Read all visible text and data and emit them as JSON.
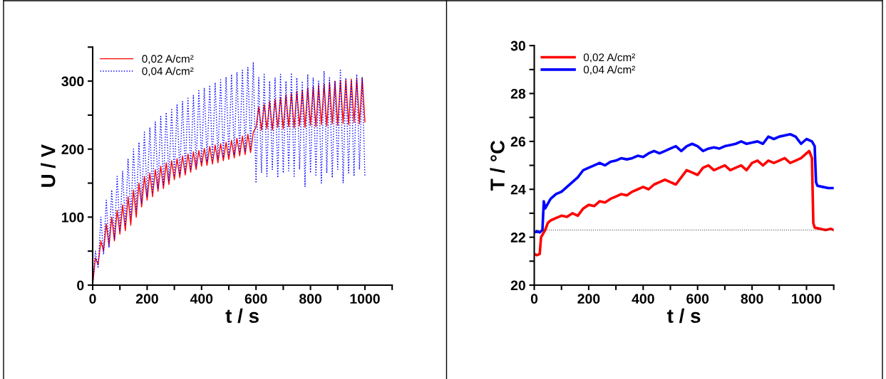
{
  "chart_data": [
    {
      "type": "line",
      "xlabel": "t / s",
      "ylabel": "U / V",
      "xlim": [
        0,
        1100
      ],
      "ylim": [
        0,
        350
      ],
      "xticks": [
        0,
        {
          "value": 100,
          "label": null
        },
        200,
        {
          "value": 300,
          "label": null
        },
        400,
        {
          "value": 500,
          "label": null
        },
        600,
        {
          "value": 700,
          "label": null
        },
        800,
        {
          "value": 900,
          "label": null
        },
        1000,
        {
          "value": 1100,
          "label": null
        }
      ],
      "yticks": [
        0,
        {
          "value": 50,
          "label": null
        },
        100,
        {
          "value": 150,
          "label": null
        },
        200,
        {
          "value": 250,
          "label": null
        },
        300,
        {
          "value": 350,
          "label": null
        }
      ],
      "grid": false,
      "legend": "top left",
      "marker": "none",
      "series": [
        {
          "name": "0,02 A/cm²",
          "color": "#ff0000",
          "line_style": "solid",
          "x": [
            0,
            10,
            20,
            30,
            40,
            50,
            60,
            70,
            80,
            90,
            100,
            110,
            120,
            130,
            140,
            150,
            160,
            170,
            180,
            190,
            200,
            210,
            220,
            230,
            240,
            250,
            260,
            270,
            280,
            290,
            300,
            310,
            320,
            330,
            340,
            350,
            360,
            370,
            380,
            390,
            400,
            410,
            420,
            430,
            440,
            450,
            460,
            470,
            480,
            490,
            500,
            510,
            520,
            530,
            540,
            550,
            560,
            570,
            580,
            590,
            600,
            610,
            620,
            630,
            640,
            650,
            660,
            670,
            680,
            690,
            700,
            710,
            720,
            730,
            740,
            750,
            760,
            770,
            780,
            790,
            800,
            810,
            820,
            830,
            840,
            850,
            860,
            870,
            880,
            890,
            900,
            910,
            920,
            930,
            940,
            950,
            960,
            970,
            980,
            990,
            1000
          ],
          "values": [
            0,
            40,
            30,
            65,
            50,
            90,
            58,
            100,
            65,
            110,
            75,
            118,
            80,
            130,
            88,
            140,
            100,
            150,
            115,
            160,
            125,
            165,
            130,
            170,
            138,
            175,
            142,
            180,
            148,
            183,
            155,
            186,
            158,
            190,
            162,
            193,
            166,
            196,
            170,
            198,
            175,
            201,
            176,
            204,
            178,
            206,
            180,
            208,
            183,
            210,
            185,
            213,
            187,
            216,
            190,
            219,
            192,
            222,
            195,
            225,
            232,
            262,
            228,
            266,
            230,
            270,
            228,
            273,
            232,
            276,
            230,
            280,
            233,
            282,
            231,
            285,
            234,
            287,
            232,
            290,
            235,
            292,
            233,
            294,
            236,
            296,
            234,
            298,
            237,
            300,
            235,
            301,
            238,
            302,
            236,
            303,
            239,
            304,
            237,
            305,
            240
          ]
        },
        {
          "name": "0,04 A/cm²",
          "color": "#0000ff",
          "line_style": "dotted",
          "x": [
            0,
            10,
            20,
            30,
            40,
            50,
            60,
            70,
            80,
            90,
            100,
            110,
            120,
            130,
            140,
            150,
            160,
            170,
            180,
            190,
            200,
            210,
            220,
            230,
            240,
            250,
            260,
            270,
            280,
            290,
            300,
            310,
            320,
            330,
            340,
            350,
            360,
            370,
            380,
            390,
            400,
            410,
            420,
            430,
            440,
            450,
            460,
            470,
            480,
            490,
            500,
            510,
            520,
            530,
            540,
            550,
            560,
            570,
            580,
            590,
            600,
            610,
            620,
            630,
            640,
            650,
            660,
            670,
            680,
            690,
            700,
            710,
            720,
            730,
            740,
            750,
            760,
            770,
            780,
            790,
            800,
            810,
            820,
            830,
            840,
            850,
            860,
            870,
            880,
            890,
            900,
            910,
            920,
            930,
            940,
            950,
            960,
            970,
            980,
            990,
            1000
          ],
          "values": [
            0,
            50,
            25,
            100,
            45,
            125,
            55,
            140,
            68,
            160,
            80,
            168,
            88,
            185,
            100,
            200,
            110,
            210,
            120,
            225,
            130,
            232,
            135,
            240,
            142,
            248,
            148,
            254,
            153,
            260,
            160,
            265,
            163,
            270,
            167,
            275,
            171,
            279,
            175,
            286,
            180,
            290,
            182,
            294,
            184,
            298,
            186,
            302,
            188,
            306,
            190,
            310,
            192,
            313,
            195,
            316,
            197,
            320,
            200,
            328,
            150,
            305,
            165,
            310,
            160,
            300,
            170,
            305,
            158,
            310,
            165,
            300,
            168,
            312,
            160,
            305,
            170,
            300,
            145,
            310,
            165,
            305,
            160,
            300,
            150,
            315,
            165,
            305,
            158,
            300,
            170,
            318,
            150,
            305,
            165,
            300,
            160,
            310,
            170,
            305,
            160
          ]
        }
      ]
    },
    {
      "type": "line",
      "xlabel": "t / s",
      "ylabel": "T / °C",
      "xlim": [
        0,
        1100
      ],
      "ylim": [
        20,
        30
      ],
      "xticks": [
        0,
        {
          "value": 100,
          "label": null
        },
        200,
        {
          "value": 300,
          "label": null
        },
        400,
        {
          "value": 500,
          "label": null
        },
        600,
        {
          "value": 700,
          "label": null
        },
        800,
        {
          "value": 900,
          "label": null
        },
        1000,
        {
          "value": 1100,
          "label": null
        }
      ],
      "yticks": [
        20,
        {
          "value": 21,
          "label": null
        },
        22,
        {
          "value": 23,
          "label": null
        },
        24,
        {
          "value": 25,
          "label": null
        },
        26,
        {
          "value": 27,
          "label": null
        },
        28,
        {
          "value": 29,
          "label": null
        },
        30
      ],
      "grid": false,
      "legend": "top left",
      "marker": "none",
      "ref_lines": [
        {
          "axis": "y",
          "value": 22.3,
          "label": null,
          "color": "#404040",
          "line_style": "dotted"
        }
      ],
      "series": [
        {
          "name": "0,02 A/cm²",
          "color": "#ff0000",
          "line_style": "solid",
          "x": [
            0,
            10,
            20,
            25,
            40,
            50,
            60,
            80,
            100,
            120,
            140,
            160,
            180,
            200,
            220,
            240,
            260,
            280,
            300,
            320,
            340,
            360,
            380,
            400,
            420,
            440,
            460,
            480,
            500,
            520,
            540,
            560,
            580,
            600,
            620,
            640,
            660,
            680,
            700,
            720,
            740,
            760,
            780,
            800,
            820,
            840,
            860,
            880,
            900,
            920,
            940,
            960,
            980,
            1000,
            1010,
            1020,
            1025,
            1030,
            1050,
            1070,
            1090,
            1100
          ],
          "values": [
            21.3,
            21.25,
            21.3,
            22.0,
            22.3,
            22.6,
            22.7,
            22.8,
            22.9,
            22.85,
            23.0,
            22.9,
            23.2,
            23.35,
            23.3,
            23.5,
            23.45,
            23.6,
            23.7,
            23.8,
            23.75,
            23.9,
            24.0,
            24.1,
            24.0,
            24.2,
            24.3,
            24.4,
            24.3,
            24.2,
            24.5,
            24.8,
            24.7,
            24.6,
            24.9,
            25.0,
            24.8,
            24.9,
            25.0,
            24.8,
            24.9,
            25.0,
            24.8,
            25.1,
            25.2,
            25.0,
            25.2,
            25.1,
            25.2,
            25.3,
            25.1,
            25.2,
            25.3,
            25.5,
            25.6,
            25.3,
            22.6,
            22.4,
            22.35,
            22.3,
            22.35,
            22.3
          ]
        },
        {
          "name": "0,04 A/cm²",
          "color": "#0000ff",
          "line_style": "solid",
          "x": [
            0,
            10,
            20,
            30,
            35,
            40,
            60,
            80,
            100,
            120,
            140,
            160,
            180,
            200,
            220,
            240,
            260,
            280,
            300,
            320,
            340,
            360,
            380,
            400,
            420,
            440,
            460,
            480,
            500,
            520,
            540,
            560,
            580,
            600,
            620,
            640,
            660,
            680,
            700,
            720,
            740,
            760,
            780,
            800,
            820,
            840,
            860,
            880,
            900,
            920,
            940,
            960,
            980,
            1000,
            1020,
            1030,
            1035,
            1040,
            1060,
            1080,
            1100
          ],
          "values": [
            22.2,
            22.25,
            22.2,
            22.3,
            23.5,
            23.2,
            23.6,
            23.8,
            23.9,
            24.1,
            24.3,
            24.5,
            24.8,
            24.9,
            25.0,
            25.1,
            25.0,
            25.15,
            25.2,
            25.3,
            25.25,
            25.3,
            25.4,
            25.35,
            25.5,
            25.6,
            25.5,
            25.6,
            25.7,
            25.8,
            25.6,
            25.8,
            25.9,
            25.8,
            25.6,
            25.7,
            25.75,
            25.7,
            25.8,
            25.85,
            25.9,
            26.0,
            25.9,
            25.95,
            26.0,
            25.9,
            26.2,
            26.1,
            26.2,
            26.25,
            26.3,
            26.2,
            25.9,
            26.1,
            26.0,
            25.8,
            24.3,
            24.15,
            24.1,
            24.05,
            24.05
          ]
        }
      ]
    }
  ]
}
